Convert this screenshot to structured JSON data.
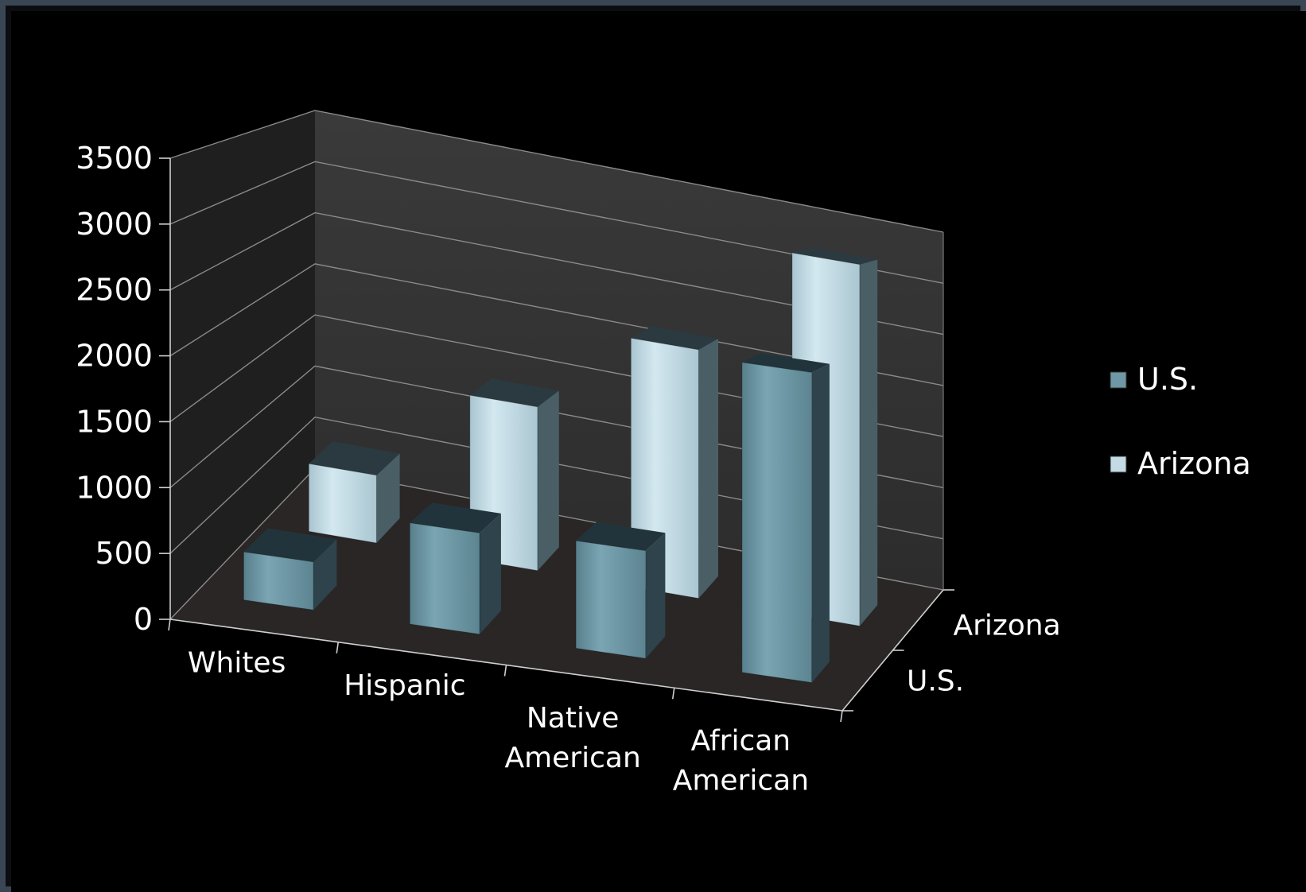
{
  "chart_data": {
    "type": "bar",
    "subtype": "3d-column",
    "categories": [
      "Whites",
      "Hispanic",
      "Native American",
      "African American"
    ],
    "category_lines": [
      [
        "Whites"
      ],
      [
        "Hispanic"
      ],
      [
        "Native",
        "American"
      ],
      [
        "African",
        "American"
      ]
    ],
    "series": [
      {
        "name": "U.S.",
        "values": [
          380,
          800,
          850,
          2450
        ],
        "color": "#6e98a6"
      },
      {
        "name": "Arizona",
        "values": [
          600,
          1450,
          2200,
          3200
        ],
        "color": "#c2dbe5"
      }
    ],
    "depth_axis_labels": [
      "U.S.",
      "Arizona"
    ],
    "y_ticks": [
      "0",
      "500",
      "1000",
      "1500",
      "2000",
      "2500",
      "3000",
      "3500"
    ],
    "ylim": [
      0,
      3500
    ],
    "grid": true,
    "legend_position": "right",
    "title": "",
    "xlabel": "",
    "ylabel": ""
  }
}
